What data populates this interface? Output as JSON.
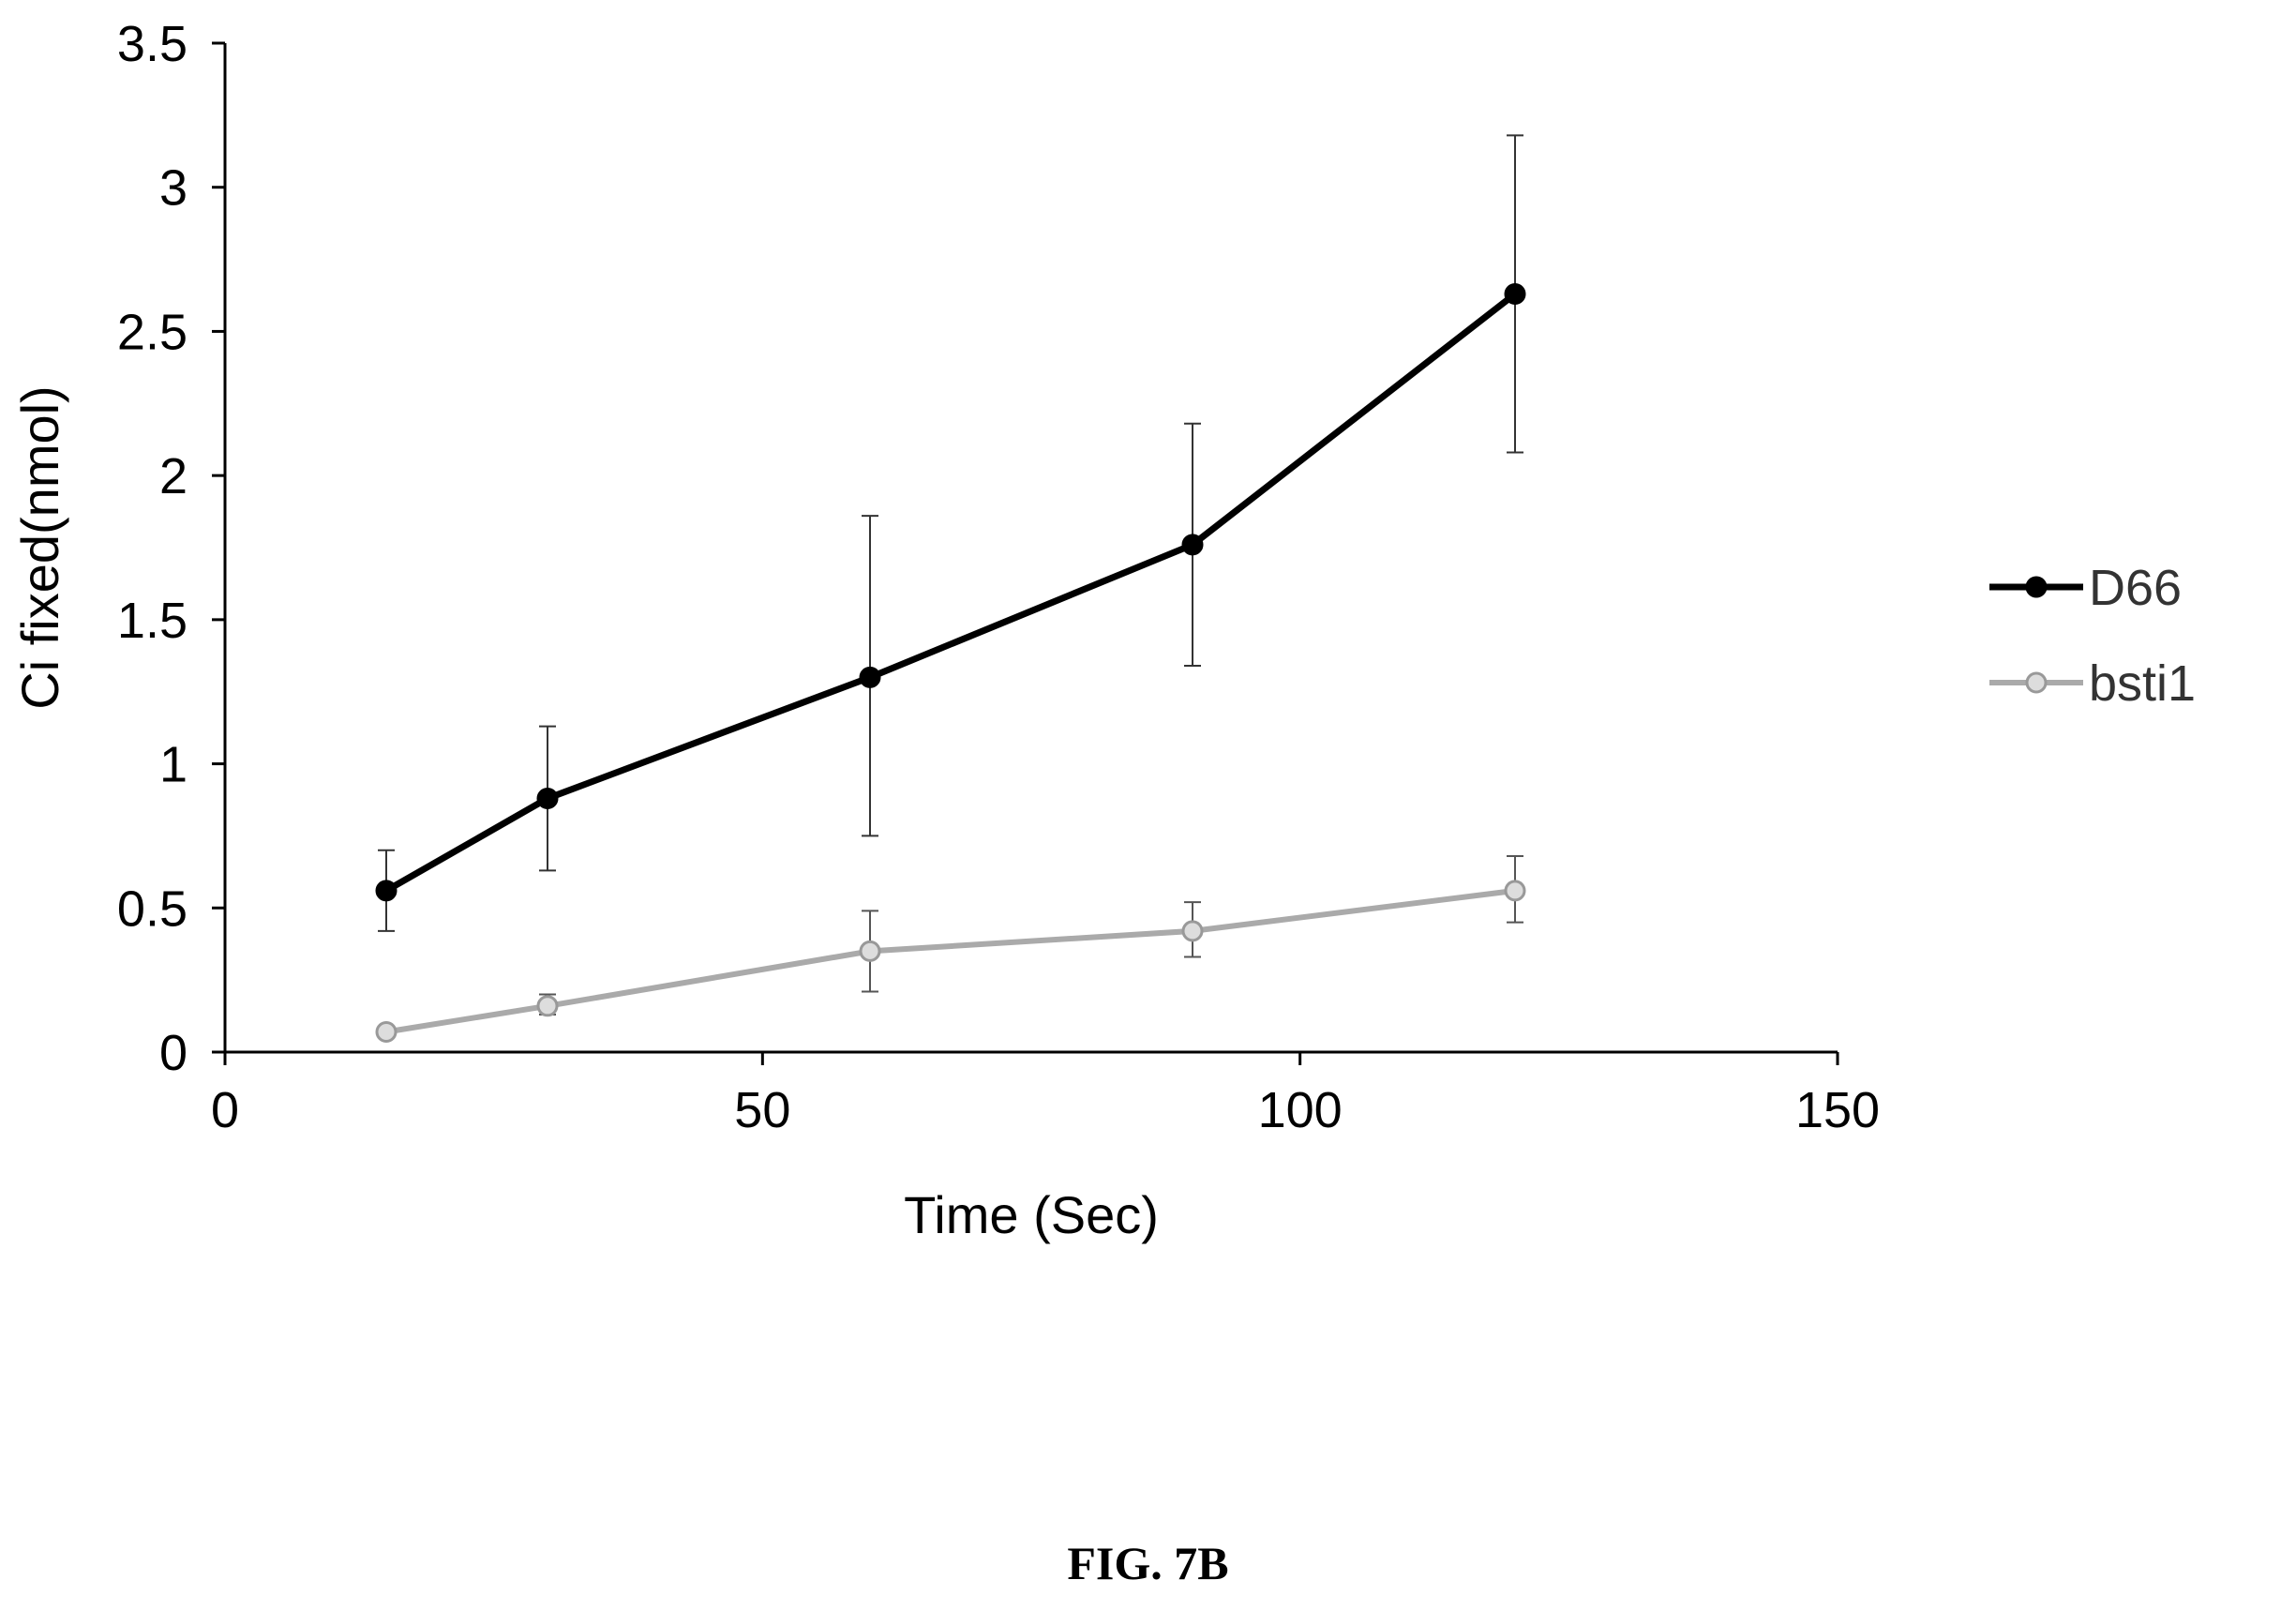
{
  "caption": "FIG. 7B",
  "chart_data": {
    "type": "line",
    "xlabel": "Time (Sec)",
    "ylabel": "Ci  fixed(nmol)",
    "xlim": [
      0,
      150
    ],
    "ylim": [
      0,
      3.5
    ],
    "x_ticks": [
      "0",
      "50",
      "100",
      "150"
    ],
    "y_ticks": [
      "0",
      "0.5",
      "1",
      "1.5",
      "2",
      "2.5",
      "3",
      "3.5"
    ],
    "grid": false,
    "legend_position": "right",
    "x": [
      15,
      30,
      60,
      90,
      120
    ],
    "series": [
      {
        "name": "D66",
        "color": "#000000",
        "marker_fill": "#000000",
        "values": [
          0.56,
          0.88,
          1.3,
          1.76,
          2.63
        ],
        "err_low": [
          0.42,
          0.63,
          0.75,
          1.34,
          2.08
        ],
        "err_high": [
          0.7,
          1.13,
          1.86,
          2.18,
          3.18
        ]
      },
      {
        "name": "bsti1",
        "color": "#aaaaaa",
        "marker_fill": "#dddddd",
        "values": [
          0.07,
          0.16,
          0.35,
          0.42,
          0.56
        ],
        "err_low": [
          0.07,
          0.13,
          0.21,
          0.33,
          0.45
        ],
        "err_high": [
          0.07,
          0.2,
          0.49,
          0.52,
          0.68
        ]
      }
    ]
  }
}
